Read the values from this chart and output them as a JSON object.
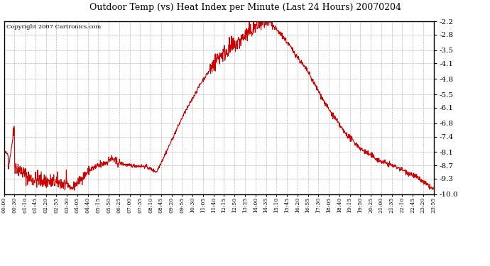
{
  "title": "Outdoor Temp (vs) Heat Index per Minute (Last 24 Hours) 20070204",
  "copyright_text": "Copyright 2007 Cartronics.com",
  "line_color": "#cc0000",
  "background_color": "#ffffff",
  "grid_color": "#aaaaaa",
  "ylim": [
    -10.0,
    -2.2
  ],
  "yticks": [
    -10.0,
    -9.3,
    -8.7,
    -8.1,
    -7.4,
    -6.8,
    -6.1,
    -5.5,
    -4.8,
    -4.1,
    -3.5,
    -2.8,
    -2.2
  ],
  "xtick_labels": [
    "00:00",
    "00:30",
    "01:10",
    "01:45",
    "02:20",
    "02:55",
    "03:30",
    "04:05",
    "04:40",
    "05:15",
    "05:50",
    "06:25",
    "07:00",
    "07:35",
    "08:10",
    "08:45",
    "09:20",
    "09:55",
    "10:30",
    "11:05",
    "11:40",
    "12:15",
    "12:50",
    "13:25",
    "14:00",
    "14:35",
    "15:10",
    "15:45",
    "16:20",
    "16:55",
    "17:30",
    "18:05",
    "18:40",
    "19:15",
    "19:50",
    "20:25",
    "21:00",
    "21:35",
    "22:10",
    "22:45",
    "23:20",
    "23:55"
  ],
  "num_points": 1440,
  "seed": 42
}
